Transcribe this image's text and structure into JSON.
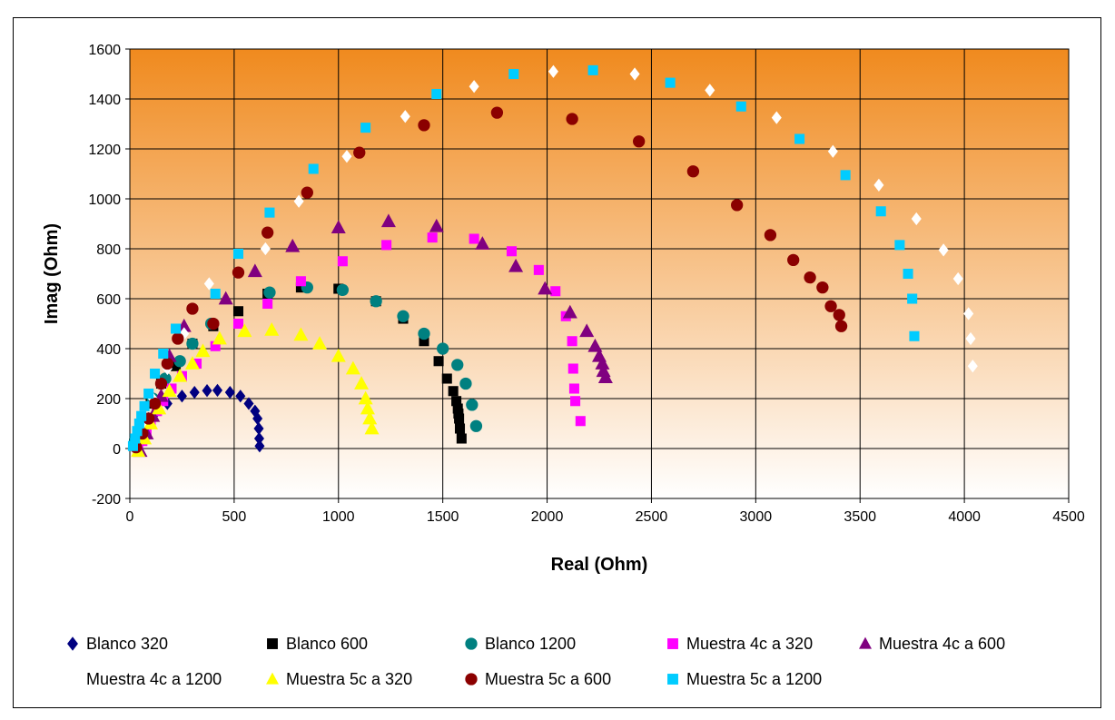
{
  "chart_data": {
    "type": "scatter",
    "xlabel": "Real (Ohm)",
    "ylabel": "Imag (Ohm)",
    "xlim": [
      0,
      4500
    ],
    "ylim": [
      -200,
      1600
    ],
    "x_ticks": [
      "0",
      "500",
      "1000",
      "1500",
      "2000",
      "2500",
      "3000",
      "3500",
      "4000",
      "4500"
    ],
    "y_ticks": [
      "-200",
      "0",
      "200",
      "400",
      "600",
      "800",
      "1000",
      "1200",
      "1400",
      "1600"
    ],
    "grid": true,
    "plot_background": "vertical gradient orange (#f08a1e) at top to white at bottom",
    "legend_position": "bottom",
    "series": [
      {
        "name": "Blanco 320",
        "marker": "diamond",
        "color": "#000080",
        "x": [
          20,
          30,
          45,
          65,
          90,
          130,
          180,
          250,
          310,
          370,
          420,
          480,
          530,
          570,
          600,
          612,
          618,
          620,
          622
        ],
        "y": [
          5,
          30,
          60,
          90,
          120,
          150,
          180,
          210,
          225,
          232,
          233,
          225,
          210,
          180,
          150,
          120,
          80,
          40,
          10
        ]
      },
      {
        "name": "Blanco 600",
        "marker": "square",
        "color": "#000000",
        "x": [
          20,
          60,
          100,
          150,
          220,
          300,
          400,
          520,
          660,
          820,
          1000,
          1180,
          1310,
          1410,
          1480,
          1520,
          1550,
          1565,
          1572,
          1575,
          1578,
          1582,
          1590
        ],
        "y": [
          20,
          100,
          180,
          260,
          330,
          420,
          490,
          550,
          620,
          645,
          640,
          590,
          520,
          430,
          350,
          280,
          230,
          190,
          160,
          140,
          120,
          80,
          40
        ]
      },
      {
        "name": "Blanco 1200",
        "marker": "circle",
        "color": "#008080",
        "x": [
          25,
          60,
          110,
          170,
          240,
          300,
          390,
          670,
          850,
          1020,
          1180,
          1310,
          1410,
          1500,
          1570,
          1610,
          1640,
          1660
        ],
        "y": [
          30,
          110,
          200,
          280,
          350,
          420,
          500,
          625,
          645,
          635,
          590,
          530,
          460,
          400,
          335,
          260,
          175,
          90
        ]
      },
      {
        "name": "Muestra 4c a 320",
        "marker": "square",
        "color": "#ff00ff",
        "x": [
          40,
          60,
          80,
          100,
          130,
          160,
          200,
          250,
          320,
          410,
          520,
          660,
          820,
          1020,
          1230,
          1450,
          1650,
          1830,
          1960,
          2040,
          2090,
          2120,
          2125,
          2130,
          2135,
          2160
        ],
        "y": [
          -10,
          30,
          70,
          100,
          150,
          190,
          240,
          290,
          340,
          410,
          500,
          580,
          670,
          750,
          815,
          845,
          840,
          790,
          715,
          630,
          530,
          430,
          320,
          240,
          190,
          110
        ]
      },
      {
        "name": "Muestra 4c a 600",
        "marker": "triangle",
        "color": "#800080",
        "x": [
          50,
          80,
          110,
          150,
          190,
          260,
          460,
          600,
          780,
          1000,
          1240,
          1470,
          1690,
          1850,
          1990,
          2110,
          2190,
          2230,
          2250,
          2265,
          2270,
          2280
        ],
        "y": [
          -10,
          60,
          130,
          210,
          370,
          490,
          600,
          710,
          810,
          885,
          910,
          890,
          820,
          730,
          640,
          545,
          470,
          410,
          370,
          340,
          310,
          285
        ]
      },
      {
        "name": "Muestra 4c a 1200",
        "marker": "diamond",
        "color": "#ffffff",
        "x": [
          30,
          60,
          110,
          180,
          260,
          380,
          650,
          810,
          1040,
          1320,
          1650,
          2030,
          2420,
          2780,
          3100,
          3370,
          3590,
          3770,
          3900,
          3970,
          4020,
          4030,
          4040
        ],
        "y": [
          20,
          100,
          200,
          320,
          460,
          660,
          800,
          990,
          1170,
          1330,
          1450,
          1510,
          1500,
          1435,
          1325,
          1190,
          1055,
          920,
          795,
          680,
          540,
          440,
          330
        ]
      },
      {
        "name": "Muestra 5c a 320",
        "marker": "triangle",
        "color": "#ffff00",
        "x": [
          40,
          70,
          100,
          140,
          190,
          240,
          300,
          350,
          430,
          550,
          680,
          820,
          910,
          1000,
          1070,
          1110,
          1130,
          1140,
          1150,
          1160
        ],
        "y": [
          -10,
          40,
          100,
          160,
          230,
          290,
          340,
          390,
          440,
          470,
          475,
          455,
          420,
          370,
          320,
          260,
          200,
          160,
          120,
          80
        ]
      },
      {
        "name": "Muestra 5c a 600",
        "marker": "circle",
        "color": "#8b0000",
        "x": [
          30,
          60,
          90,
          120,
          150,
          180,
          230,
          300,
          400,
          520,
          660,
          850,
          1100,
          1410,
          1760,
          2120,
          2440,
          2700,
          2910,
          3070,
          3180,
          3260,
          3320,
          3360,
          3400,
          3410
        ],
        "y": [
          5,
          60,
          120,
          180,
          260,
          340,
          440,
          560,
          500,
          705,
          865,
          1025,
          1185,
          1295,
          1345,
          1320,
          1230,
          1110,
          975,
          855,
          755,
          685,
          645,
          570,
          535,
          490
        ]
      },
      {
        "name": "Muestra 5c a 1200",
        "marker": "square",
        "color": "#00ccff",
        "x": [
          15,
          25,
          35,
          45,
          55,
          70,
          90,
          120,
          160,
          220,
          410,
          520,
          670,
          880,
          1130,
          1470,
          1840,
          2220,
          2590,
          2930,
          3210,
          3430,
          3600,
          3690,
          3730,
          3750,
          3760
        ],
        "y": [
          10,
          40,
          70,
          100,
          130,
          170,
          220,
          300,
          380,
          480,
          620,
          780,
          945,
          1120,
          1285,
          1420,
          1500,
          1515,
          1465,
          1370,
          1240,
          1095,
          950,
          815,
          700,
          600,
          450
        ]
      }
    ]
  }
}
